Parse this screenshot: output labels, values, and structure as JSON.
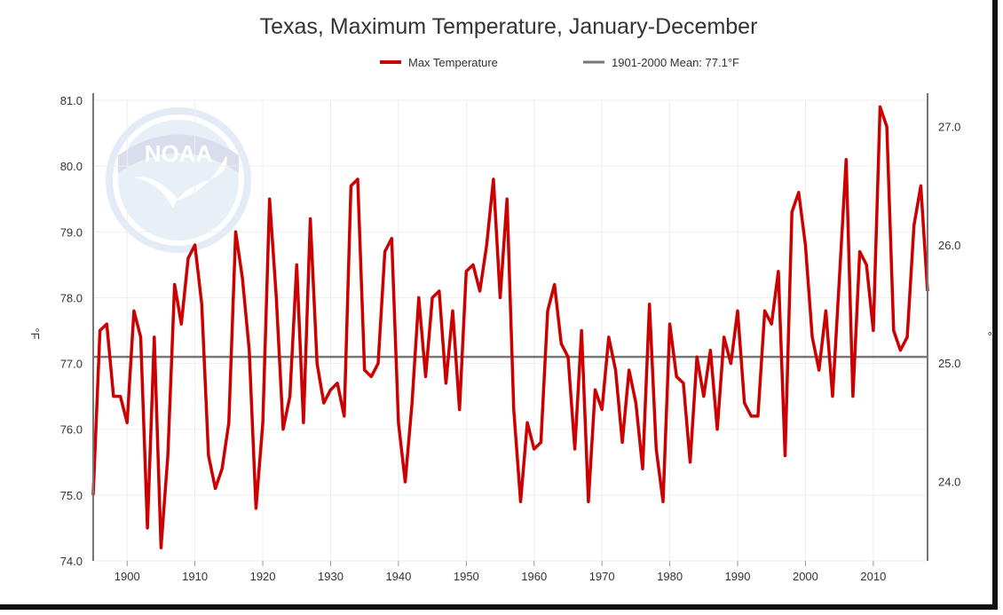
{
  "chart_data": {
    "type": "line",
    "title": "Texas, Maximum Temperature, January-December",
    "ylabel": "°F",
    "ylabel_right": "°",
    "legend_position": "top-center",
    "grid": true,
    "xlim": [
      1895,
      2018
    ],
    "ylim": [
      74.0,
      81.0
    ],
    "ylim_right": [
      23.33,
      27.22
    ],
    "x_ticks": [
      1900,
      1910,
      1920,
      1930,
      1940,
      1950,
      1960,
      1970,
      1980,
      1990,
      2000,
      2010
    ],
    "y_ticks": [
      74.0,
      75.0,
      76.0,
      77.0,
      78.0,
      79.0,
      80.0,
      81.0
    ],
    "y_tick_labels": [
      "74.0",
      "75.0",
      "76.0",
      "77.0",
      "78.0",
      "79.0",
      "80.0",
      "81.0"
    ],
    "y_ticks_right": [
      24.0,
      25.0,
      26.0,
      27.0
    ],
    "y_tick_labels_right": [
      "24.0",
      "25.0",
      "26.0",
      "27.0"
    ],
    "series": [
      {
        "name": "Max Temperature",
        "color": "#cc0000",
        "x": [
          1895,
          1896,
          1897,
          1898,
          1899,
          1900,
          1901,
          1902,
          1903,
          1904,
          1905,
          1906,
          1907,
          1908,
          1909,
          1910,
          1911,
          1912,
          1913,
          1914,
          1915,
          1916,
          1917,
          1918,
          1919,
          1920,
          1921,
          1922,
          1923,
          1924,
          1925,
          1926,
          1927,
          1928,
          1929,
          1930,
          1931,
          1932,
          1933,
          1934,
          1935,
          1936,
          1937,
          1938,
          1939,
          1940,
          1941,
          1942,
          1943,
          1944,
          1945,
          1946,
          1947,
          1948,
          1949,
          1950,
          1951,
          1952,
          1953,
          1954,
          1955,
          1956,
          1957,
          1958,
          1959,
          1960,
          1961,
          1962,
          1963,
          1964,
          1965,
          1966,
          1967,
          1968,
          1969,
          1970,
          1971,
          1972,
          1973,
          1974,
          1975,
          1976,
          1977,
          1978,
          1979,
          1980,
          1981,
          1982,
          1983,
          1984,
          1985,
          1986,
          1987,
          1988,
          1989,
          1990,
          1991,
          1992,
          1993,
          1994,
          1995,
          1996,
          1997,
          1998,
          1999,
          2000,
          2001,
          2002,
          2003,
          2004,
          2005,
          2006,
          2007,
          2008,
          2009,
          2010,
          2011,
          2012,
          2013,
          2014,
          2015,
          2016,
          2017,
          2018
        ],
        "values": [
          75.0,
          77.5,
          77.6,
          76.5,
          76.5,
          76.1,
          77.8,
          77.4,
          74.5,
          77.4,
          74.2,
          75.6,
          78.2,
          77.6,
          78.6,
          78.8,
          77.9,
          75.6,
          75.1,
          75.4,
          76.1,
          79.0,
          78.3,
          77.2,
          74.8,
          76.1,
          79.5,
          78.0,
          76.0,
          76.5,
          78.5,
          76.1,
          79.2,
          77.0,
          76.4,
          76.6,
          76.7,
          76.2,
          79.7,
          79.8,
          76.9,
          76.8,
          77.0,
          78.7,
          78.9,
          76.1,
          75.2,
          76.4,
          78.0,
          76.8,
          78.0,
          78.1,
          76.7,
          77.8,
          76.3,
          78.4,
          78.5,
          78.1,
          78.8,
          79.8,
          78.0,
          79.5,
          76.3,
          74.9,
          76.1,
          75.7,
          75.8,
          77.8,
          78.2,
          77.3,
          77.1,
          75.7,
          77.5,
          74.9,
          76.6,
          76.3,
          77.4,
          76.9,
          75.8,
          76.9,
          76.4,
          75.4,
          77.9,
          75.7,
          74.9,
          77.6,
          76.8,
          76.7,
          75.5,
          77.1,
          76.5,
          77.2,
          76.0,
          77.4,
          77.0,
          77.8,
          76.4,
          76.2,
          76.2,
          77.8,
          77.6,
          78.4,
          75.6,
          79.3,
          79.6,
          78.8,
          77.4,
          76.9,
          77.8,
          76.5,
          78.3,
          80.1,
          76.5,
          78.7,
          78.5,
          77.5,
          80.9,
          80.6,
          77.5,
          77.2,
          77.4,
          79.1,
          79.7,
          78.1
        ]
      },
      {
        "name": "1901-2000 Mean: 77.1°F",
        "color": "#777777",
        "mean_value": 77.1
      }
    ]
  }
}
